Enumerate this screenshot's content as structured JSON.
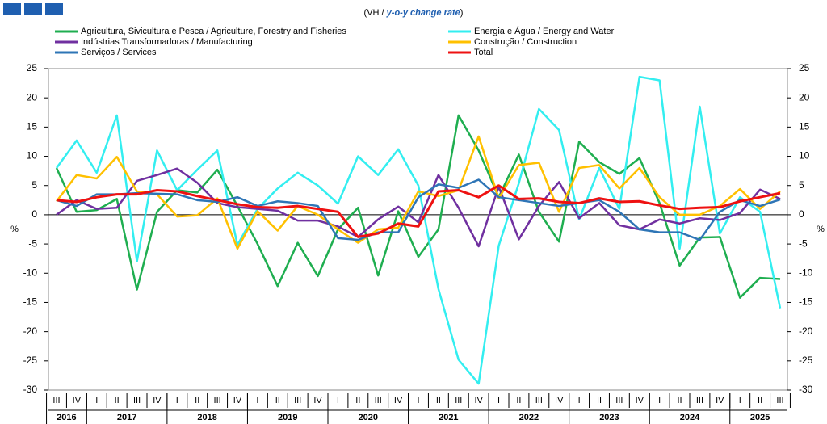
{
  "chart_data": {
    "type": "line",
    "subtitle": [
      "(VH / ",
      "y-o-y change rate",
      ")"
    ],
    "y_label": "%",
    "categories": [
      "III",
      "IV",
      "I",
      "II",
      "III",
      "IV",
      "I",
      "II",
      "III",
      "IV",
      "I",
      "II",
      "III",
      "IV",
      "I",
      "II",
      "III",
      "IV",
      "I",
      "II",
      "III",
      "IV",
      "I",
      "II",
      "III",
      "IV",
      "I",
      "II",
      "III",
      "IV",
      "I",
      "II",
      "III",
      "IV",
      "I",
      "II",
      "III"
    ],
    "years": [
      "2016",
      "2017",
      "2018",
      "2019",
      "2020",
      "2021",
      "2022",
      "2023",
      "2024",
      "2025"
    ],
    "ylim": [
      -30,
      25
    ],
    "yticks": [
      -30,
      -25,
      -20,
      -15,
      -10,
      -5,
      0,
      5,
      10,
      15,
      20,
      25
    ],
    "series": [
      {
        "name": "Agricultura, Sivicultura e Pesca / Agriculture, Forestry and Fisheries",
        "color": "#1fae50",
        "values": [
          8,
          0.5,
          0.8,
          2.7,
          -12.8,
          0.5,
          4.2,
          3.8,
          7.7,
          1.5,
          -5,
          -12.2,
          -4.8,
          -10.5,
          -2.5,
          1.2,
          -10.4,
          0.6,
          -7.2,
          -2.5,
          17,
          11,
          3,
          10.3,
          0.5,
          -4.6,
          12.5,
          9,
          7,
          9.7,
          2,
          -8.7,
          -3.9,
          -3.8,
          -14.2,
          -10.8,
          -11
        ]
      },
      {
        "name": "Energia e Água / Energy and Water",
        "color": "#33eef0",
        "values": [
          8,
          12.7,
          7.2,
          17,
          -8,
          11,
          4.2,
          7.7,
          11,
          -5.2,
          1,
          4.5,
          7.2,
          5,
          1.9,
          10,
          6.8,
          11.2,
          5,
          -12.7,
          -24.8,
          -28.9,
          -5.3,
          5.4,
          18.1,
          14.5,
          -0.8,
          8,
          1,
          23.6,
          23,
          -5.8,
          18.5,
          -3.2,
          3,
          0.5,
          -16
        ]
      },
      {
        "name": "Indústrias Transformadoras / Manufacturing",
        "color": "#7030a0",
        "values": [
          0,
          2.5,
          1,
          1.2,
          5.8,
          6.8,
          7.9,
          5.5,
          2,
          1.3,
          1,
          0.7,
          -1,
          -1,
          -2,
          -3.8,
          -0.8,
          1.4,
          -1.3,
          6.8,
          1.2,
          -5.4,
          4.8,
          -4.2,
          1.5,
          5.6,
          -0.6,
          2,
          -1.8,
          -2.5,
          -0.8,
          -1.5,
          -0.6,
          -0.9,
          0.3,
          4.3,
          2.7
        ]
      },
      {
        "name": "Construção / Construction",
        "color": "#ffc000",
        "values": [
          2.3,
          6.8,
          6.2,
          9.9,
          4,
          3.5,
          -0.3,
          -0.1,
          2.8,
          -5.8,
          0.6,
          -2.7,
          1.5,
          0,
          -2.5,
          -4.8,
          -2.5,
          -2.2,
          4,
          3.2,
          4.2,
          13.4,
          2.8,
          8.5,
          8.9,
          0.5,
          8,
          8.5,
          4.5,
          8,
          3,
          0,
          0,
          1.5,
          4.4,
          1,
          4
        ]
      },
      {
        "name": "Serviços / Services",
        "color": "#2e75b6",
        "values": [
          2.5,
          1.5,
          3.5,
          3.5,
          3.7,
          3.6,
          3.5,
          2.5,
          2.2,
          3,
          1.5,
          2.3,
          2,
          1.5,
          -4,
          -4.3,
          -3,
          -3,
          3,
          5.2,
          4.6,
          6,
          3,
          2.5,
          2,
          1.5,
          2,
          2.5,
          0.5,
          -2.5,
          -3,
          -3,
          -4.3,
          0.5,
          2.5,
          1.5,
          2.6
        ]
      },
      {
        "name": "Total",
        "color": "#ee1111",
        "values": [
          2.5,
          2.2,
          3,
          3.5,
          3.5,
          4.2,
          4,
          3.2,
          2.5,
          1.8,
          1.3,
          1.2,
          1.5,
          1,
          0.5,
          -3.8,
          -3.2,
          -1.5,
          -2,
          4,
          4.2,
          3,
          5,
          2.7,
          2.8,
          2.2,
          2,
          2.8,
          2.2,
          2.3,
          1.6,
          1,
          1.2,
          1.3,
          2.3,
          3,
          3.7
        ]
      }
    ]
  }
}
